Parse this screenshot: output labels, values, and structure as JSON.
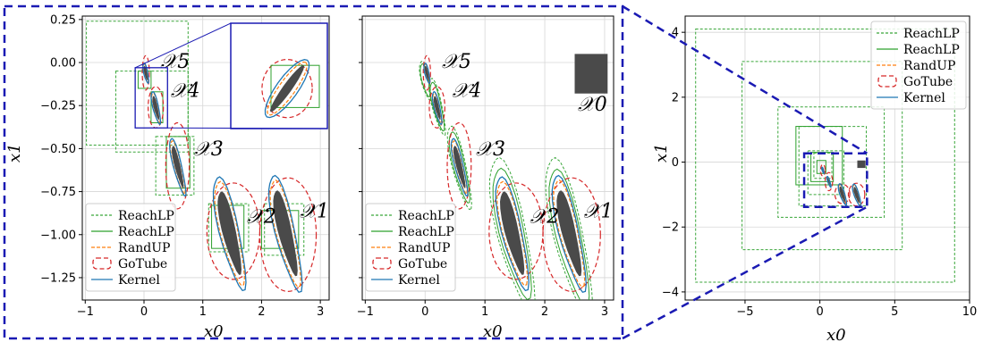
{
  "colors": {
    "reachlp_outer": "#3aa63a",
    "reachlp_inner": "#2ca02c",
    "randup": "#ff7f0e",
    "gotube": "#d62728",
    "kernel": "#1f77b4",
    "initial_set": "#4a4a4a",
    "zoom": "#1a1ab3",
    "grid": "#d6d6d6"
  },
  "legend_entries": [
    "ReachLP",
    "ReachLP",
    "RandUP",
    "GoTube",
    "Kernel"
  ],
  "set_labels": [
    "𝒳5",
    "𝒳4",
    "𝒳3",
    "𝒳2",
    "𝒳1",
    "𝒳0"
  ],
  "chart_data": [
    {
      "type": "scatter",
      "panel": "left",
      "xlabel": "x0",
      "ylabel": "x1",
      "xlim": [
        -1.05,
        3.15
      ],
      "ylim": [
        -1.38,
        0.27
      ],
      "xticks": [
        -1,
        0,
        1,
        2,
        3
      ],
      "xtick_labels": [
        "−1",
        "0",
        "1",
        "2",
        "3"
      ],
      "yticks": [
        0.25,
        0.0,
        -0.25,
        -0.5,
        -0.75,
        -1.0,
        -1.25
      ],
      "ytick_labels": [
        "0.25",
        "0.00",
        "−0.25",
        "−0.50",
        "−0.75",
        "−1.00",
        "−1.25"
      ],
      "grid": true,
      "legend_placement": "lower-left",
      "series": [
        {
          "name": "ReachLP",
          "style": "dashed-box",
          "boxes": [
            [
              -0.98,
              0.24,
              0.75,
              -0.48
            ],
            [
              -0.48,
              -0.05,
              0.75,
              -0.52
            ],
            [
              0.2,
              -0.43,
              0.85,
              -0.77
            ],
            [
              1.1,
              -0.82,
              1.78,
              -1.1
            ],
            [
              2.05,
              -0.82,
              2.72,
              -1.12
            ]
          ]
        },
        {
          "name": "ReachLP",
          "style": "solid-box",
          "boxes": [
            [
              -0.1,
              -0.05,
              0.12,
              -0.15
            ],
            [
              0.12,
              -0.17,
              0.32,
              -0.35
            ],
            [
              0.38,
              -0.43,
              0.78,
              -0.73
            ],
            [
              1.15,
              -0.83,
              1.7,
              -1.08
            ],
            [
              2.0,
              -0.86,
              2.63,
              -1.08
            ]
          ]
        },
        {
          "name": "GoTube",
          "style": "ellipse",
          "sets": [
            [
              0.03,
              -0.06,
              0.06,
              0.1
            ],
            [
              0.2,
              -0.26,
              0.13,
              0.12
            ],
            [
              0.57,
              -0.6,
              0.2,
              0.25
            ],
            [
              1.52,
              -0.98,
              0.45,
              0.28
            ],
            [
              2.45,
              -1.0,
              0.48,
              0.33
            ]
          ]
        },
        {
          "name": "Kernel",
          "style": "contour",
          "sets": [
            [
              0.03,
              -0.06
            ],
            [
              0.2,
              -0.26
            ],
            [
              0.57,
              -0.6
            ],
            [
              1.45,
              -0.98
            ],
            [
              2.4,
              -0.98
            ]
          ]
        }
      ],
      "inset": {
        "xlim": [
          -0.15,
          0.45
        ],
        "ylim": [
          -0.45,
          0.05
        ]
      }
    },
    {
      "type": "scatter",
      "panel": "middle",
      "xlabel": "x0",
      "ylabel": "",
      "xlim": [
        -1.05,
        3.15
      ],
      "ylim": [
        -1.38,
        0.27
      ],
      "xticks": [
        -1,
        0,
        1,
        2,
        3
      ],
      "xtick_labels": [
        "−1",
        "0",
        "1",
        "2",
        "3"
      ],
      "yticks": [
        0.25,
        0.0,
        -0.25,
        -0.5,
        -0.75,
        -1.0,
        -1.25
      ],
      "grid": true,
      "legend_placement": "lower-left",
      "series": [
        {
          "name": "ReachLP",
          "style": "dashed-polygon",
          "sets": [
            [
              0.0,
              -0.1
            ],
            [
              0.2,
              -0.25
            ],
            [
              0.57,
              -0.6
            ],
            [
              1.45,
              -0.98
            ],
            [
              2.4,
              -1.0
            ]
          ]
        },
        {
          "name": "ReachLP",
          "style": "solid-polygon",
          "sets": [
            [
              0.0,
              -0.1
            ],
            [
              0.2,
              -0.25
            ],
            [
              0.57,
              -0.6
            ],
            [
              1.45,
              -0.98
            ],
            [
              2.4,
              -1.0
            ]
          ]
        },
        {
          "name": "GoTube",
          "style": "ellipse",
          "sets": [
            [
              0.03,
              -0.06,
              0.06,
              0.1
            ],
            [
              0.2,
              -0.26,
              0.13,
              0.12
            ],
            [
              0.57,
              -0.6,
              0.2,
              0.25
            ],
            [
              1.52,
              -0.98,
              0.45,
              0.28
            ],
            [
              2.45,
              -1.0,
              0.48,
              0.33
            ]
          ]
        },
        {
          "name": "Kernel",
          "style": "contour",
          "sets": [
            [
              0.03,
              -0.06
            ],
            [
              0.2,
              -0.26
            ],
            [
              0.57,
              -0.6
            ],
            [
              1.45,
              -0.98
            ],
            [
              2.4,
              -0.98
            ]
          ]
        }
      ],
      "initial_set_box": [
        2.5,
        0.05,
        3.05,
        -0.18
      ]
    },
    {
      "type": "scatter",
      "panel": "right",
      "xlabel": "x0",
      "ylabel": "x1",
      "xlim": [
        -9,
        10
      ],
      "ylim": [
        -4.25,
        4.5
      ],
      "xticks": [
        -5,
        0,
        5,
        10
      ],
      "xtick_labels": [
        "−5",
        "0",
        "5",
        "10"
      ],
      "yticks": [
        4,
        2,
        0,
        -2,
        -4
      ],
      "ytick_labels": [
        "4",
        "2",
        "0",
        "−2",
        "−4"
      ],
      "grid": true,
      "legend_placement": "top-right",
      "series": [
        {
          "name": "ReachLP",
          "style": "dashed-box",
          "boxes": [
            [
              -8.3,
              4.1,
              9.0,
              -3.7
            ],
            [
              -5.2,
              3.1,
              5.5,
              -2.7
            ],
            [
              -2.8,
              1.7,
              4.3,
              -1.7
            ],
            [
              -1.4,
              1.1,
              3.1,
              -1.35
            ],
            [
              -0.8,
              0.35,
              1.6,
              -1.0
            ],
            [
              -0.4,
              0.28,
              0.8,
              -0.5
            ]
          ]
        },
        {
          "name": "ReachLP",
          "style": "solid-box",
          "boxes": [
            [
              -1.6,
              1.1,
              1.5,
              -0.7
            ],
            [
              -0.6,
              0.3,
              0.9,
              -0.6
            ],
            [
              -0.2,
              0.05,
              0.4,
              -0.35
            ]
          ]
        },
        {
          "name": "GoTube",
          "style": "ellipse",
          "sets": [
            [
              0.2,
              -0.25,
              0.15,
              0.18
            ],
            [
              0.6,
              -0.6,
              0.25,
              0.28
            ],
            [
              1.5,
              -0.98,
              0.5,
              0.3
            ],
            [
              2.45,
              -1.0,
              0.55,
              0.35
            ]
          ]
        },
        {
          "name": "Kernel",
          "style": "contour",
          "sets": [
            [
              0.2,
              -0.25
            ],
            [
              0.6,
              -0.6
            ],
            [
              1.5,
              -0.98
            ],
            [
              2.45,
              -1.0
            ]
          ]
        }
      ],
      "zoom_box": [
        -1.05,
        0.27,
        3.15,
        -1.38
      ],
      "initial_set_box": [
        2.5,
        0.05,
        3.05,
        -0.18
      ]
    }
  ]
}
